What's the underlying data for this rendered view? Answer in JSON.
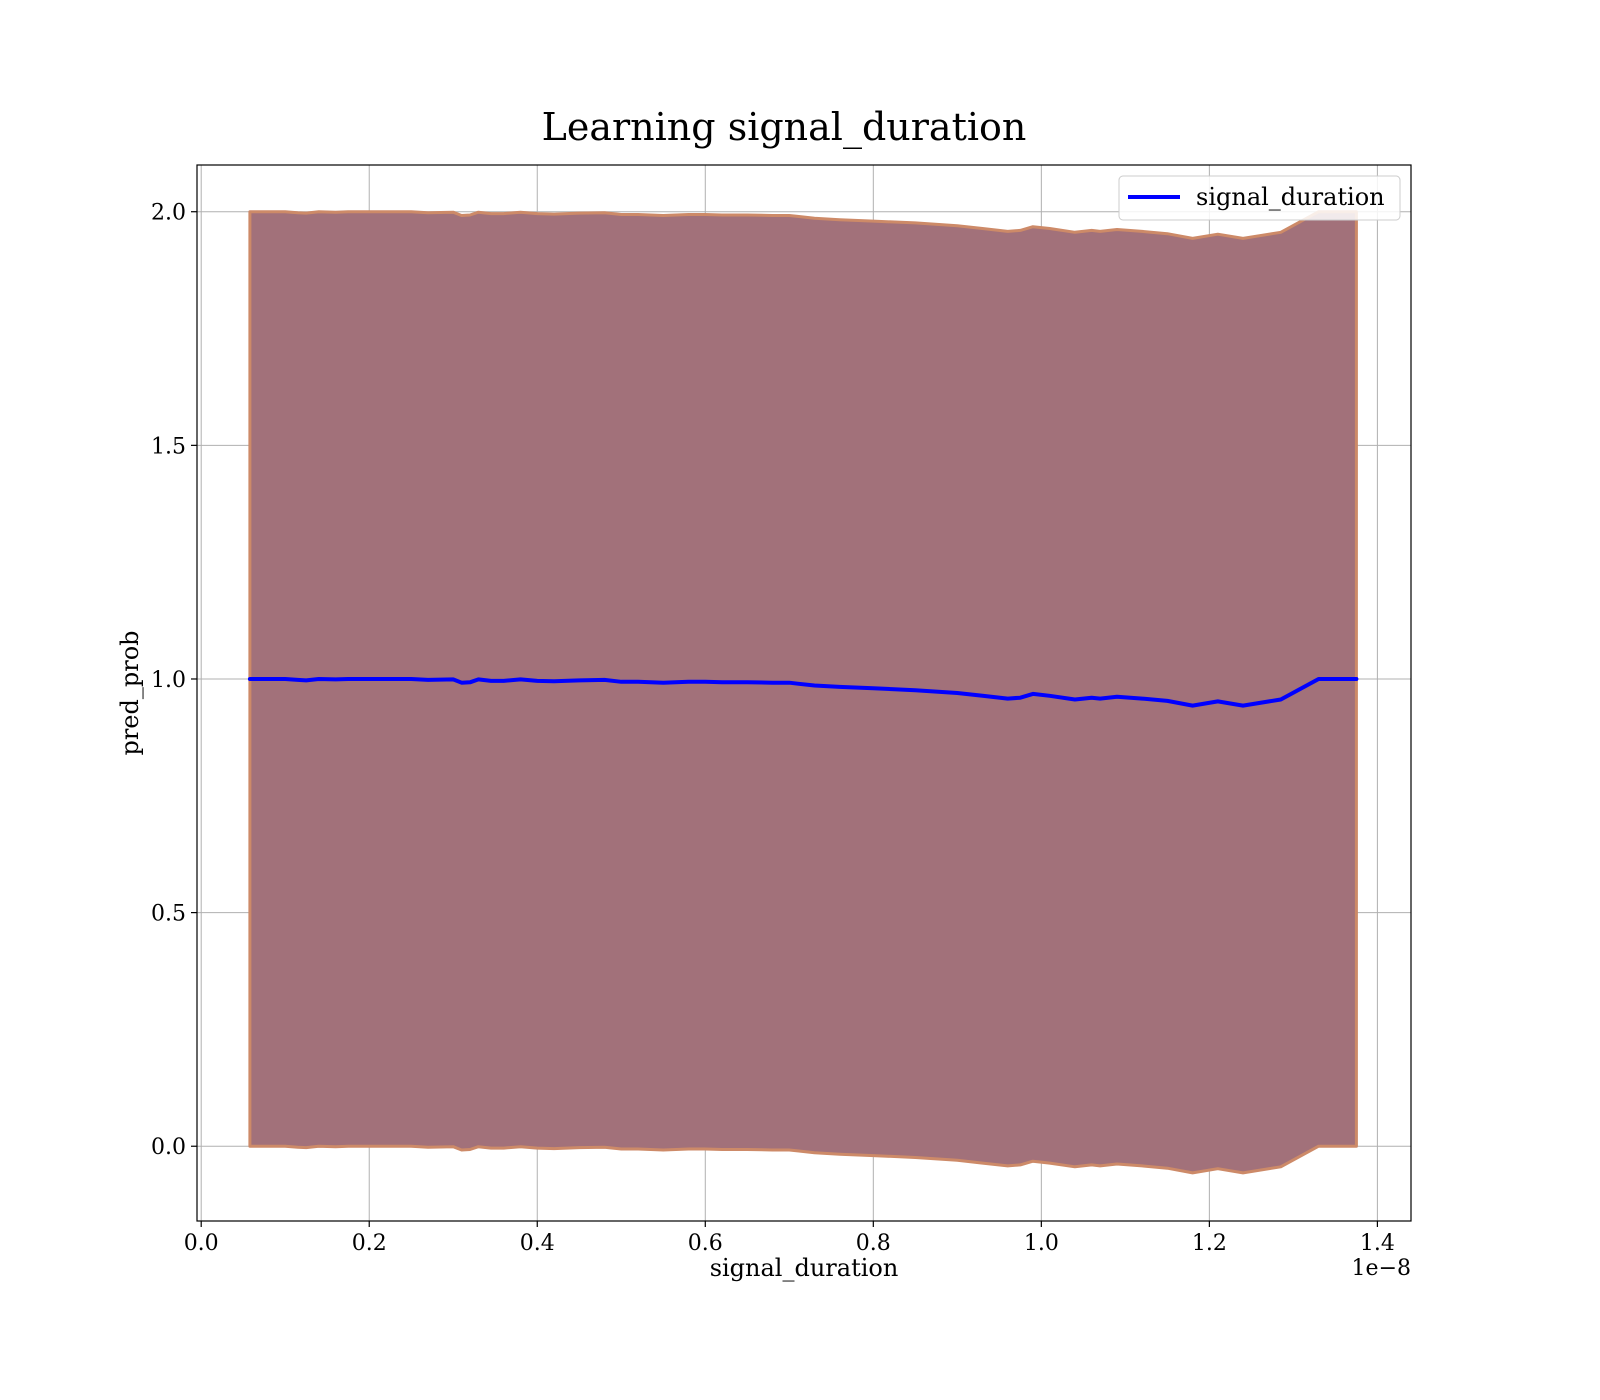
{
  "chart_data": {
    "type": "line",
    "title": "Learning signal_duration",
    "xlabel": "signal_duration",
    "ylabel": "pred_prob",
    "x_offset_label": "1e−8",
    "xlim": [
      -0.005,
      1.44
    ],
    "ylim": [
      -0.16,
      2.1
    ],
    "x_ticks": [
      0.0,
      0.2,
      0.4,
      0.6,
      0.8,
      1.0,
      1.2,
      1.4
    ],
    "x_tick_labels": [
      "0.0",
      "0.2",
      "0.4",
      "0.6",
      "0.8",
      "1.0",
      "1.2",
      "1.4"
    ],
    "y_ticks": [
      0.0,
      0.5,
      1.0,
      1.5,
      2.0
    ],
    "y_tick_labels": [
      "0.0",
      "0.5",
      "1.0",
      "1.5",
      "2.0"
    ],
    "grid": true,
    "legend_position": "top-right",
    "series": [
      {
        "name": "signal_duration",
        "color": "#0000ff",
        "x": [
          0.058,
          0.08,
          0.1,
          0.115,
          0.125,
          0.14,
          0.16,
          0.175,
          0.2,
          0.22,
          0.25,
          0.27,
          0.3,
          0.31,
          0.32,
          0.33,
          0.345,
          0.36,
          0.38,
          0.4,
          0.42,
          0.45,
          0.48,
          0.5,
          0.52,
          0.55,
          0.58,
          0.6,
          0.62,
          0.65,
          0.68,
          0.7,
          0.71,
          0.73,
          0.76,
          0.8,
          0.85,
          0.9,
          0.93,
          0.96,
          0.975,
          0.99,
          1.01,
          1.04,
          1.06,
          1.07,
          1.09,
          1.12,
          1.15,
          1.18,
          1.21,
          1.24,
          1.285,
          1.33,
          1.375
        ],
        "y": [
          1.0,
          1.0,
          1.0,
          0.998,
          0.997,
          1.0,
          0.999,
          1.0,
          1.0,
          1.0,
          1.0,
          0.998,
          0.999,
          0.992,
          0.993,
          0.999,
          0.996,
          0.996,
          0.999,
          0.996,
          0.995,
          0.997,
          0.998,
          0.994,
          0.994,
          0.992,
          0.994,
          0.994,
          0.993,
          0.993,
          0.992,
          0.992,
          0.99,
          0.986,
          0.983,
          0.98,
          0.976,
          0.97,
          0.964,
          0.958,
          0.96,
          0.968,
          0.964,
          0.956,
          0.96,
          0.958,
          0.962,
          0.958,
          0.953,
          0.943,
          0.952,
          0.943,
          0.956,
          1.0,
          1.0
        ]
      }
    ],
    "band": {
      "fill_color": "#a2717a",
      "edge_color": "#cd8a68",
      "x": [
        0.058,
        0.08,
        0.1,
        0.115,
        0.125,
        0.14,
        0.16,
        0.175,
        0.2,
        0.22,
        0.25,
        0.27,
        0.3,
        0.31,
        0.32,
        0.33,
        0.345,
        0.36,
        0.38,
        0.4,
        0.42,
        0.45,
        0.48,
        0.5,
        0.52,
        0.55,
        0.58,
        0.6,
        0.62,
        0.65,
        0.68,
        0.7,
        0.71,
        0.73,
        0.76,
        0.8,
        0.85,
        0.9,
        0.93,
        0.96,
        0.975,
        0.99,
        1.01,
        1.04,
        1.06,
        1.07,
        1.09,
        1.12,
        1.15,
        1.18,
        1.21,
        1.24,
        1.285,
        1.33,
        1.375
      ],
      "upper": [
        2.0,
        2.0,
        2.0,
        1.998,
        1.997,
        2.0,
        1.999,
        2.0,
        2.0,
        2.0,
        2.0,
        1.998,
        1.999,
        1.992,
        1.993,
        1.999,
        1.996,
        1.996,
        1.999,
        1.996,
        1.995,
        1.997,
        1.998,
        1.994,
        1.994,
        1.992,
        1.994,
        1.994,
        1.993,
        1.993,
        1.992,
        1.992,
        1.99,
        1.986,
        1.983,
        1.98,
        1.976,
        1.97,
        1.964,
        1.958,
        1.96,
        1.968,
        1.964,
        1.956,
        1.96,
        1.958,
        1.962,
        1.958,
        1.953,
        1.943,
        1.952,
        1.943,
        1.956,
        2.0,
        2.0
      ],
      "lower": [
        0.0,
        0.0,
        0.0,
        -0.002,
        -0.003,
        0.0,
        -0.001,
        0.0,
        0.0,
        0.0,
        0.0,
        -0.002,
        -0.001,
        -0.008,
        -0.007,
        -0.001,
        -0.004,
        -0.004,
        -0.001,
        -0.004,
        -0.005,
        -0.003,
        -0.002,
        -0.006,
        -0.006,
        -0.008,
        -0.006,
        -0.006,
        -0.007,
        -0.007,
        -0.008,
        -0.008,
        -0.01,
        -0.014,
        -0.017,
        -0.02,
        -0.024,
        -0.03,
        -0.036,
        -0.042,
        -0.04,
        -0.032,
        -0.036,
        -0.044,
        -0.04,
        -0.042,
        -0.038,
        -0.042,
        -0.047,
        -0.057,
        -0.048,
        -0.057,
        -0.044,
        0.0,
        0.0
      ]
    }
  }
}
